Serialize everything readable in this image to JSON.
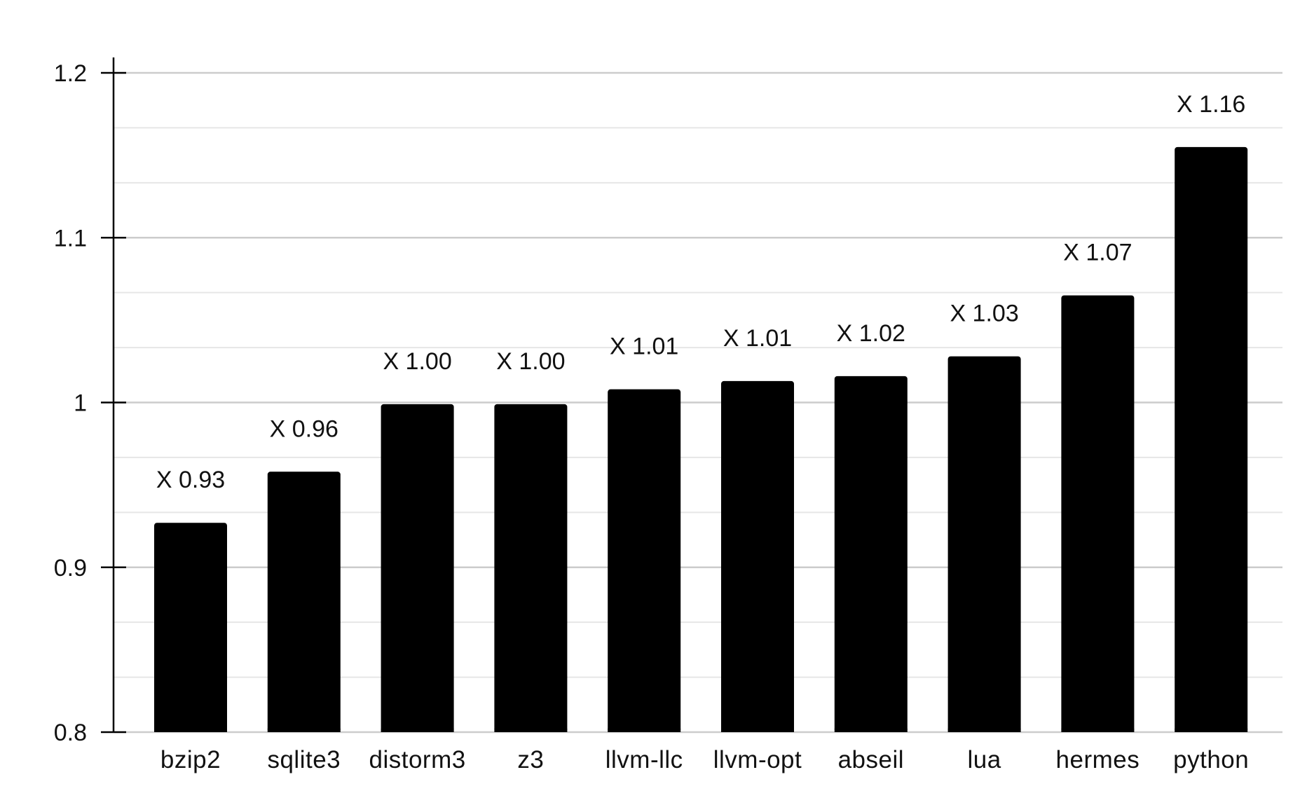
{
  "chart_data": {
    "type": "bar",
    "categories": [
      "bzip2",
      "sqlite3",
      "distorm3",
      "z3",
      "llvm-llc",
      "llvm-opt",
      "abseil",
      "lua",
      "hermes",
      "python"
    ],
    "values": [
      0.927,
      0.958,
      0.999,
      0.999,
      1.008,
      1.013,
      1.016,
      1.028,
      1.065,
      1.155
    ],
    "data_labels": [
      "X 0.93",
      "X 0.96",
      "X 1.00",
      "X 1.00",
      "X 1.01",
      "X 1.01",
      "X 1.02",
      "X 1.03",
      "X 1.07",
      "X 1.16"
    ],
    "ylim": [
      0.8,
      1.2
    ],
    "yticks": [
      0.8,
      0.9,
      1.0,
      1.1,
      1.2
    ],
    "ytick_labels": [
      "0.8",
      "0.9",
      "1",
      "1.1",
      "1.2"
    ],
    "minor_grid_step": 0.0333,
    "grid": true,
    "title": "",
    "xlabel": "",
    "ylabel": "",
    "colors": {
      "bar": "#000000",
      "major_grid": "#cccccc",
      "minor_grid": "#e6e6e6",
      "axis": "#000000"
    }
  }
}
